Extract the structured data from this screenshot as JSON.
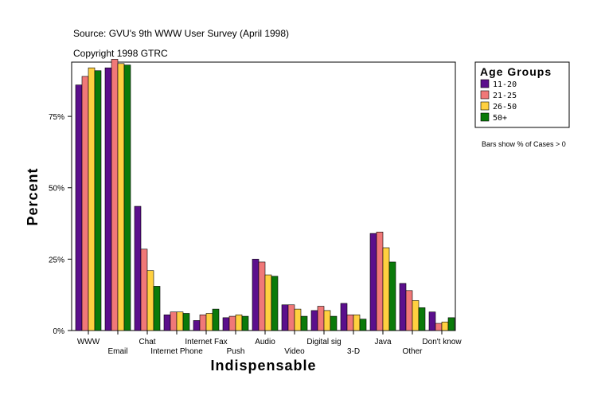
{
  "source_line": "Source: GVU's 9th WWW User Survey (April 1998)",
  "copyright_line": "Copyright 1998 GTRC",
  "legend": {
    "title": "Age Groups",
    "placement": "right"
  },
  "note": "Bars show % of Cases > 0",
  "chart_data": {
    "type": "bar",
    "xlabel": "Indispensable",
    "ylabel": "Percent",
    "ylim": [
      0,
      94
    ],
    "yticks": [
      0,
      25,
      50,
      75
    ],
    "ytick_labels": [
      "0%",
      "25%",
      "50%",
      "75%"
    ],
    "grid": false,
    "categories": [
      "WWW",
      "Email",
      "Chat",
      "Internet Phone",
      "Internet Fax",
      "Push",
      "Audio",
      "Video",
      "Digital sig",
      "3-D",
      "Java",
      "Other",
      "Don't know"
    ],
    "series": [
      {
        "name": "11-20",
        "color": "#5b0f8c",
        "values": [
          86,
          92,
          43.5,
          5.5,
          3.5,
          4.5,
          25,
          9,
          7,
          9.5,
          34,
          16.5,
          6.5
        ]
      },
      {
        "name": "21-25",
        "color": "#f07878",
        "values": [
          89,
          95,
          28.5,
          6.5,
          5.5,
          5,
          24,
          9,
          8.5,
          5.5,
          34.5,
          14,
          2.5
        ]
      },
      {
        "name": "26-50",
        "color": "#ffd040",
        "values": [
          92,
          93.5,
          21,
          6.5,
          6,
          5.5,
          19.5,
          7.5,
          7,
          5.5,
          29,
          10.5,
          3
        ]
      },
      {
        "name": "50+",
        "color": "#0a7a0a",
        "values": [
          91,
          93,
          15.5,
          6,
          7.5,
          5,
          19,
          5,
          5,
          4,
          24,
          8,
          4.5
        ]
      }
    ]
  }
}
